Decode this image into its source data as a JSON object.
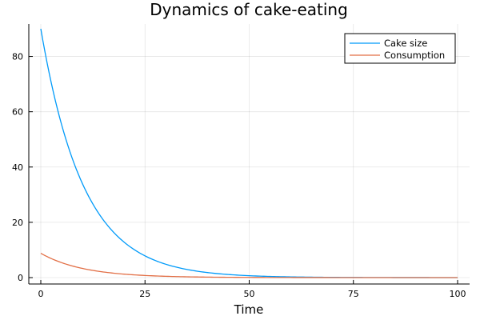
{
  "chart_data": {
    "type": "line",
    "title": "Dynamics of cake-eating",
    "xlabel": "Time",
    "ylabel": "",
    "xlim": [
      0,
      100
    ],
    "ylim": [
      0,
      90
    ],
    "xticks": [
      0,
      25,
      50,
      75,
      100
    ],
    "yticks": [
      0,
      20,
      40,
      60,
      80
    ],
    "grid": true,
    "legend_position": "top-right",
    "series": [
      {
        "name": "Cake size",
        "color": "#009af9",
        "start": 90.0,
        "decay_rate": 0.0975,
        "t_start": 0,
        "t_end": 100,
        "sample_points": [
          [
            0,
            90.0
          ],
          [
            10,
            34.0
          ],
          [
            20,
            12.8
          ],
          [
            30,
            4.8
          ],
          [
            40,
            1.8
          ],
          [
            50,
            0.7
          ],
          [
            75,
            0.1
          ],
          [
            100,
            0.0
          ]
        ]
      },
      {
        "name": "Consumption",
        "color": "#e26f46",
        "start": 8.8,
        "decay_rate": 0.0975,
        "t_start": 0,
        "t_end": 100,
        "sample_points": [
          [
            0,
            8.8
          ],
          [
            10,
            3.3
          ],
          [
            20,
            1.25
          ],
          [
            30,
            0.47
          ],
          [
            40,
            0.18
          ],
          [
            50,
            0.07
          ],
          [
            75,
            0.0
          ],
          [
            100,
            0.0
          ]
        ]
      }
    ]
  }
}
